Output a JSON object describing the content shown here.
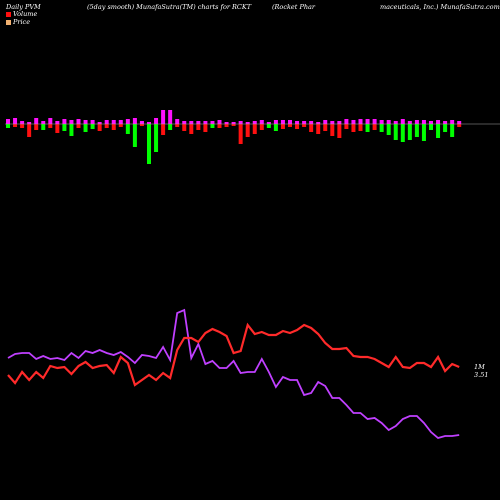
{
  "header": {
    "left": "Daily PVM",
    "middle": "(5day smooth) MunafaSutra(TM) charts for RCKT",
    "right_a": "(Rocket Phar",
    "right_b": "maceuticals, Inc.) MunafaSutra.com"
  },
  "legend": [
    {
      "label": "Volume",
      "color": "#ff1010"
    },
    {
      "label": "Price",
      "color": "#f0b070"
    }
  ],
  "end_labels": {
    "line1": "1M",
    "line2": "3.51"
  },
  "colors": {
    "volume_up": "#ff10ff",
    "volume_red": "#ff1010",
    "volume_green": "#00ff00",
    "price_line": "#ff2a2a",
    "volume_line": "#c040ff",
    "baseline": "#aaaaaa"
  },
  "chart_data": {
    "type": "bar+line",
    "volume_bars": {
      "up": [
        5,
        6,
        3,
        2,
        6,
        3,
        6,
        3,
        5,
        4,
        5,
        4,
        4,
        2,
        4,
        4,
        4,
        5,
        6,
        3,
        2,
        6,
        14,
        14,
        5,
        3,
        3,
        3,
        3,
        3,
        4,
        2,
        2,
        3,
        2,
        3,
        4,
        2,
        4,
        4,
        4,
        3,
        3,
        3,
        2,
        4,
        3,
        3,
        5,
        4,
        5,
        5,
        5,
        4,
        4,
        3,
        5,
        3,
        4,
        4,
        3,
        4,
        3,
        4,
        3
      ],
      "down": [
        4,
        3,
        4,
        13,
        6,
        6,
        4,
        9,
        7,
        12,
        4,
        8,
        5,
        7,
        4,
        6,
        3,
        10,
        23,
        2,
        40,
        28,
        11,
        6,
        3,
        7,
        10,
        6,
        8,
        4,
        4,
        3,
        2,
        20,
        13,
        10,
        6,
        4,
        7,
        5,
        3,
        5,
        3,
        8,
        10,
        7,
        12,
        14,
        5,
        8,
        7,
        8,
        6,
        8,
        11,
        16,
        18,
        16,
        13,
        17,
        6,
        14,
        8,
        13,
        3
      ],
      "down_color": [
        "g",
        "r",
        "r",
        "r",
        "r",
        "g",
        "r",
        "r",
        "g",
        "g",
        "r",
        "g",
        "g",
        "r",
        "r",
        "r",
        "r",
        "g",
        "g",
        "r",
        "g",
        "g",
        "r",
        "g",
        "r",
        "r",
        "r",
        "r",
        "r",
        "g",
        "r",
        "r",
        "r",
        "r",
        "r",
        "r",
        "r",
        "g",
        "g",
        "r",
        "r",
        "r",
        "r",
        "r",
        "r",
        "r",
        "r",
        "r",
        "r",
        "r",
        "r",
        "g",
        "r",
        "g",
        "g",
        "g",
        "g",
        "g",
        "g",
        "g",
        "g",
        "g",
        "g",
        "g",
        "r"
      ]
    },
    "price_series": [
      375,
      383,
      372,
      380,
      372,
      378,
      366,
      368,
      367,
      374,
      366,
      362,
      368,
      366,
      365,
      373,
      357,
      363,
      385,
      380,
      375,
      380,
      373,
      378,
      350,
      338,
      338,
      342,
      333,
      329,
      332,
      336,
      353,
      351,
      325,
      334,
      332,
      335,
      335,
      331,
      333,
      330,
      325,
      328,
      334,
      343,
      349,
      349,
      348,
      356,
      357,
      357,
      359,
      363,
      367,
      357,
      367,
      368,
      363,
      363,
      367,
      357,
      371,
      364,
      367
    ],
    "volume_series": [
      358,
      354,
      353,
      353,
      359,
      356,
      359,
      358,
      360,
      353,
      358,
      351,
      353,
      350,
      353,
      355,
      352,
      357,
      363,
      355,
      356,
      358,
      347,
      360,
      313,
      310,
      358,
      344,
      364,
      361,
      368,
      368,
      361,
      373,
      372,
      372,
      359,
      372,
      387,
      377,
      380,
      380,
      395,
      393,
      382,
      386,
      398,
      398,
      405,
      413,
      413,
      419,
      418,
      423,
      430,
      426,
      419,
      416,
      416,
      423,
      432,
      438,
      436,
      436,
      435
    ]
  }
}
